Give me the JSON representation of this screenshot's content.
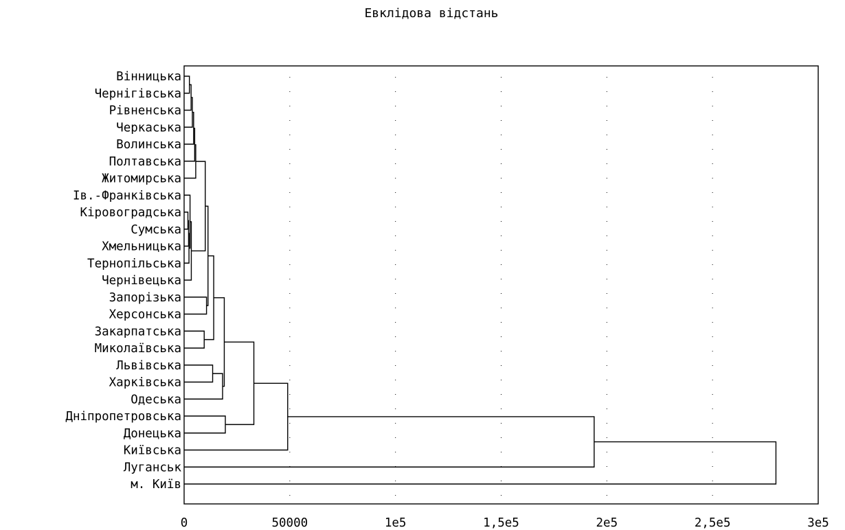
{
  "chart_data": {
    "type": "dendrogram",
    "title": "Евклідова відстань",
    "xlim": [
      0,
      300000
    ],
    "x_ticks": [
      {
        "value": 0,
        "label": "0"
      },
      {
        "value": 50000,
        "label": "50000"
      },
      {
        "value": 100000,
        "label": "1e5"
      },
      {
        "value": 150000,
        "label": "1,5e5"
      },
      {
        "value": 200000,
        "label": "2e5"
      },
      {
        "value": 250000,
        "label": "2,5e5"
      },
      {
        "value": 300000,
        "label": "3e5"
      }
    ],
    "grid": true,
    "leaves": [
      "Вінницька",
      "Чернігівська",
      "Рівненська",
      "Черкаська",
      "Волинська",
      "Полтавська",
      "Житомирська",
      "Ів.-Франківська",
      "Кіровоградська",
      "Сумська",
      "Хмельницька",
      "Тернопільська",
      "Чернівецька",
      "Запорізька",
      "Херсонська",
      "Закарпатська",
      "Миколаївська",
      "Львівська",
      "Харківська",
      "Одеська",
      "Дніпропетровська",
      "Донецька",
      "Київська",
      "Луганськ",
      "м. Київ"
    ],
    "merges": [
      {
        "a": 0,
        "b": 1,
        "height": 2500
      },
      {
        "a": 25,
        "b": 2,
        "height": 3300
      },
      {
        "a": 26,
        "b": 3,
        "height": 3900
      },
      {
        "a": 27,
        "b": 4,
        "height": 4500
      },
      {
        "a": 28,
        "b": 5,
        "height": 5000
      },
      {
        "a": 29,
        "b": 6,
        "height": 5500
      },
      {
        "a": 8,
        "b": 9,
        "height": 1800
      },
      {
        "a": 31,
        "b": 10,
        "height": 2100
      },
      {
        "a": 32,
        "b": 11,
        "height": 2300
      },
      {
        "a": 7,
        "b": 33,
        "height": 2800
      },
      {
        "a": 34,
        "b": 12,
        "height": 3400
      },
      {
        "a": 30,
        "b": 35,
        "height": 10000
      },
      {
        "a": 13,
        "b": 14,
        "height": 10600
      },
      {
        "a": 36,
        "b": 37,
        "height": 11300
      },
      {
        "a": 15,
        "b": 16,
        "height": 9500
      },
      {
        "a": 38,
        "b": 39,
        "height": 14000
      },
      {
        "a": 17,
        "b": 18,
        "height": 13500
      },
      {
        "a": 41,
        "b": 19,
        "height": 18200
      },
      {
        "a": 40,
        "b": 42,
        "height": 19000
      },
      {
        "a": 20,
        "b": 21,
        "height": 19500
      },
      {
        "a": 43,
        "b": 44,
        "height": 33000
      },
      {
        "a": 45,
        "b": 22,
        "height": 49000
      },
      {
        "a": 46,
        "b": 23,
        "height": 194000
      },
      {
        "a": 47,
        "b": 24,
        "height": 280000
      }
    ]
  }
}
